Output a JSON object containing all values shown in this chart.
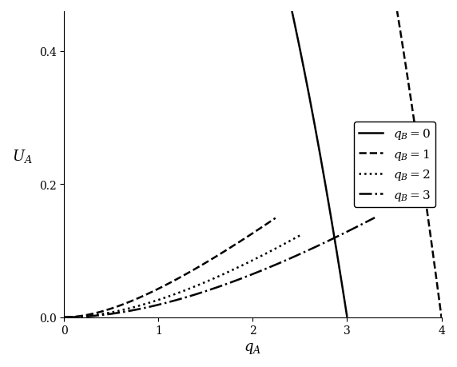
{
  "xlabel": "$q_A$",
  "ylabel": "$U_A$",
  "xlim": [
    0,
    4
  ],
  "ylim": [
    0,
    0.46
  ],
  "yticks": [
    0,
    0.2,
    0.4
  ],
  "xticks": [
    0,
    1,
    2,
    3,
    4
  ],
  "legend_labels": [
    "$q_B = 0$",
    "$q_B = 1$",
    "$q_B = 2$",
    "$q_B = 3$"
  ],
  "line_styles": [
    "-",
    "--",
    ":",
    "-."
  ],
  "line_color": "#000000",
  "line_width": 1.8,
  "legend_loc": "center right",
  "legend_fontsize": 11,
  "figsize": [
    5.72,
    4.6
  ],
  "dpi": 100,
  "qB_values": [
    0,
    1,
    2,
    3
  ],
  "t": 1.5,
  "s": 1.0,
  "tc": 1.0
}
